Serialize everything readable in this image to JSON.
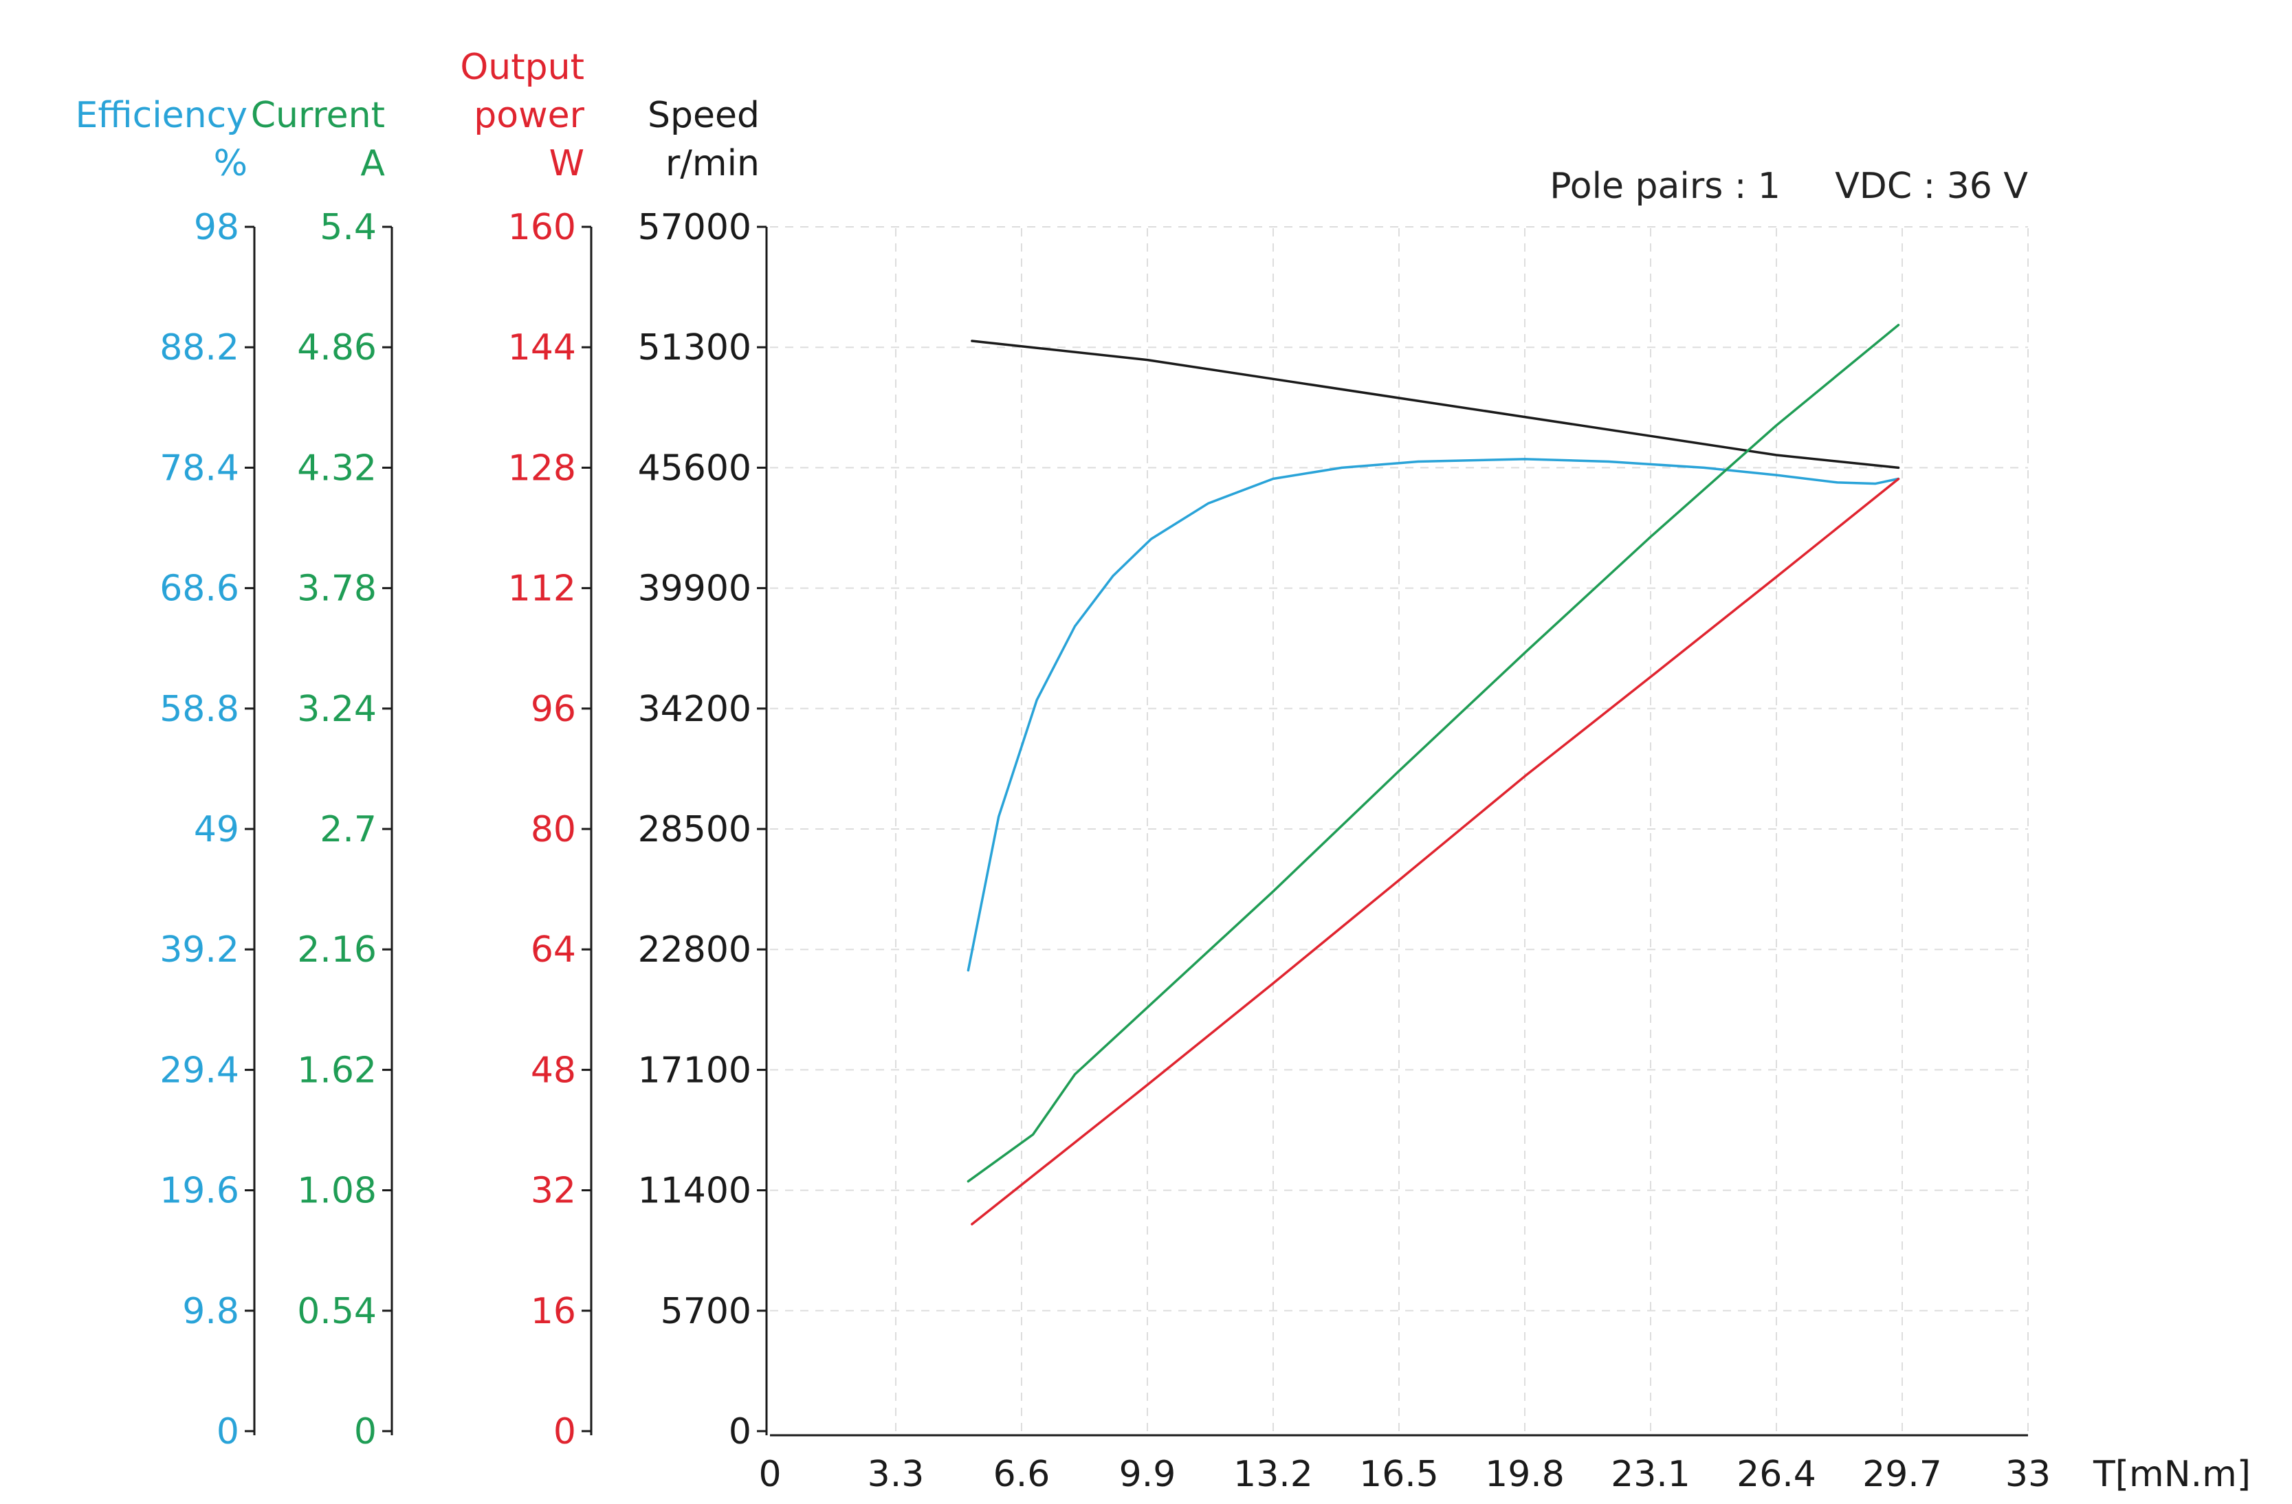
{
  "chart_data": {
    "type": "line",
    "notes": {
      "pole_pairs": "Pole pairs : 1",
      "vdc": "VDC : 36 V"
    },
    "x_axis": {
      "label": "T[mN.m]",
      "ticks": [
        "0",
        "3.3",
        "6.6",
        "9.9",
        "13.2",
        "16.5",
        "19.8",
        "23.1",
        "26.4",
        "29.7",
        "33"
      ],
      "range": [
        0,
        33
      ],
      "grid": true
    },
    "y_axes": [
      {
        "id": "efficiency",
        "title": [
          "Efficiency",
          "%"
        ],
        "color": "#29a3d8",
        "range": [
          0,
          98
        ],
        "ticks": [
          "0",
          "9.8",
          "19.6",
          "29.4",
          "39.2",
          "49",
          "58.8",
          "68.6",
          "78.4",
          "88.2",
          "98"
        ]
      },
      {
        "id": "current",
        "title": [
          "Current",
          "A"
        ],
        "color": "#1f9d55",
        "range": [
          0,
          5.4
        ],
        "ticks": [
          "0",
          "0.54",
          "1.08",
          "1.62",
          "2.16",
          "2.7",
          "3.24",
          "3.78",
          "4.32",
          "4.86",
          "5.4"
        ]
      },
      {
        "id": "power",
        "title": [
          "Output",
          "power",
          "W"
        ],
        "color": "#e0242f",
        "range": [
          0,
          160
        ],
        "ticks": [
          "0",
          "16",
          "32",
          "48",
          "64",
          "80",
          "96",
          "112",
          "128",
          "144",
          "160"
        ]
      },
      {
        "id": "speed",
        "title": [
          "Speed",
          "r/min"
        ],
        "color": "#1a1a1a",
        "range": [
          0,
          57000
        ],
        "ticks": [
          "0",
          "5700",
          "11400",
          "17100",
          "22800",
          "28500",
          "34200",
          "39900",
          "45600",
          "51300",
          "57000"
        ]
      }
    ],
    "series": [
      {
        "axis": "speed",
        "color": "#1a1a1a",
        "points": [
          [
            5.3,
            51600
          ],
          [
            9.9,
            50700
          ],
          [
            13.2,
            49800
          ],
          [
            16.5,
            48900
          ],
          [
            19.8,
            48000
          ],
          [
            23.1,
            47100
          ],
          [
            26.4,
            46200
          ],
          [
            29.6,
            45600
          ]
        ]
      },
      {
        "axis": "efficiency",
        "color": "#29a3d8",
        "points": [
          [
            5.2,
            37.5
          ],
          [
            6.0,
            50.0
          ],
          [
            7.0,
            59.5
          ],
          [
            8.0,
            65.5
          ],
          [
            9.0,
            69.6
          ],
          [
            10.0,
            72.6
          ],
          [
            11.5,
            75.5
          ],
          [
            13.2,
            77.5
          ],
          [
            15.0,
            78.4
          ],
          [
            17.0,
            78.9
          ],
          [
            19.8,
            79.1
          ],
          [
            22.0,
            78.9
          ],
          [
            24.5,
            78.4
          ],
          [
            26.4,
            77.8
          ],
          [
            28.0,
            77.2
          ],
          [
            29.0,
            77.1
          ],
          [
            29.6,
            77.5
          ]
        ]
      },
      {
        "axis": "current",
        "color": "#1f9d55",
        "points": [
          [
            5.2,
            1.12
          ],
          [
            6.9,
            1.33
          ],
          [
            8.0,
            1.6
          ],
          [
            13.2,
            2.42
          ],
          [
            16.5,
            2.96
          ],
          [
            19.8,
            3.49
          ],
          [
            23.1,
            4.01
          ],
          [
            26.4,
            4.51
          ],
          [
            29.6,
            4.96
          ]
        ]
      },
      {
        "axis": "power",
        "color": "#e0242f",
        "points": [
          [
            5.3,
            27.5
          ],
          [
            9.9,
            46.0
          ],
          [
            13.2,
            59.5
          ],
          [
            16.5,
            73.2
          ],
          [
            19.8,
            87.0
          ],
          [
            23.1,
            100.2
          ],
          [
            26.4,
            113.5
          ],
          [
            29.6,
            126.5
          ]
        ]
      }
    ]
  }
}
